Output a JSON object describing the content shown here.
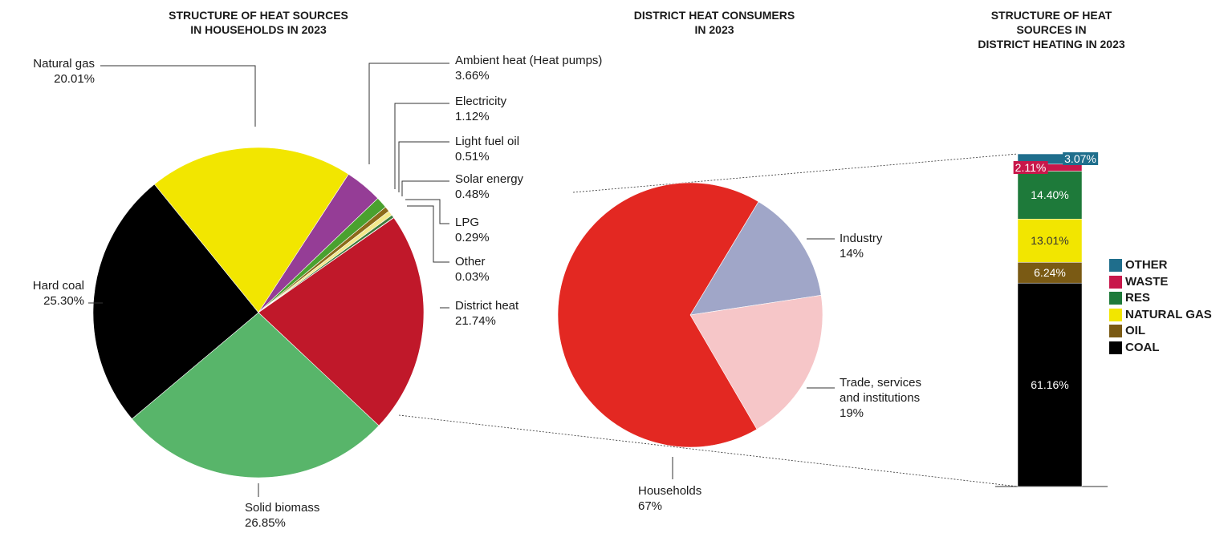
{
  "chart_data": [
    {
      "type": "pie",
      "title": "STRUCTURE OF HEAT SOURCES\nIN HOUSEHOLDS IN 2023",
      "categories": [
        "Natural gas",
        "Ambient heat (Heat pumps)",
        "Electricity",
        "Light fuel oil",
        "Solar energy",
        "LPG",
        "Other",
        "District heat",
        "Solid biomass",
        "Hard coal"
      ],
      "values": [
        20.01,
        3.66,
        1.12,
        0.51,
        0.48,
        0.29,
        0.03,
        21.74,
        26.85,
        25.3
      ],
      "value_labels": [
        "20.01%",
        "3.66%",
        "1.12%",
        "0.51%",
        "0.48%",
        "0.29%",
        "0.03%",
        "21.74%",
        "26.85%",
        "25.30%"
      ],
      "colors": [
        "#f2e600",
        "#953d96",
        "#4aa12f",
        "#8c6a1a",
        "#f3e98c",
        "#3f7a3a",
        "#e0182a",
        "#c0182a",
        "#58b56a",
        "#000000"
      ]
    },
    {
      "type": "pie",
      "title": "DISTRICT HEAT CONSUMERS\nIN 2023",
      "categories": [
        "Industry",
        "Trade, services\nand institutions",
        "Households"
      ],
      "values": [
        14,
        19,
        67
      ],
      "value_labels": [
        "14%",
        "19%",
        "67%"
      ],
      "colors": [
        "#a0a6c8",
        "#f6c6c8",
        "#e32822"
      ]
    },
    {
      "type": "bar",
      "title": "STRUCTURE OF HEAT SOURCES IN\nDISTRICT HEATING  IN 2023",
      "stacked": true,
      "series": [
        {
          "name": "COAL",
          "color": "#000000",
          "values": [
            61.16
          ],
          "value_labels": [
            "61.16%"
          ]
        },
        {
          "name": "OIL",
          "color": "#7a5a14",
          "values": [
            6.24
          ],
          "value_labels": [
            "6.24%"
          ]
        },
        {
          "name": "NATURAL GAS",
          "color": "#f2e600",
          "values": [
            13.01
          ],
          "value_labels": [
            "13.01%"
          ]
        },
        {
          "name": "RES",
          "color": "#1e7a3a",
          "values": [
            14.4
          ],
          "value_labels": [
            "14.40%"
          ]
        },
        {
          "name": "WASTE",
          "color": "#c8174a",
          "values": [
            2.11
          ],
          "value_labels": [
            "2.11%"
          ]
        },
        {
          "name": "OTHER",
          "color": "#1f6e8c",
          "values": [
            3.07
          ],
          "value_labels": [
            "3.07%"
          ]
        }
      ]
    }
  ]
}
